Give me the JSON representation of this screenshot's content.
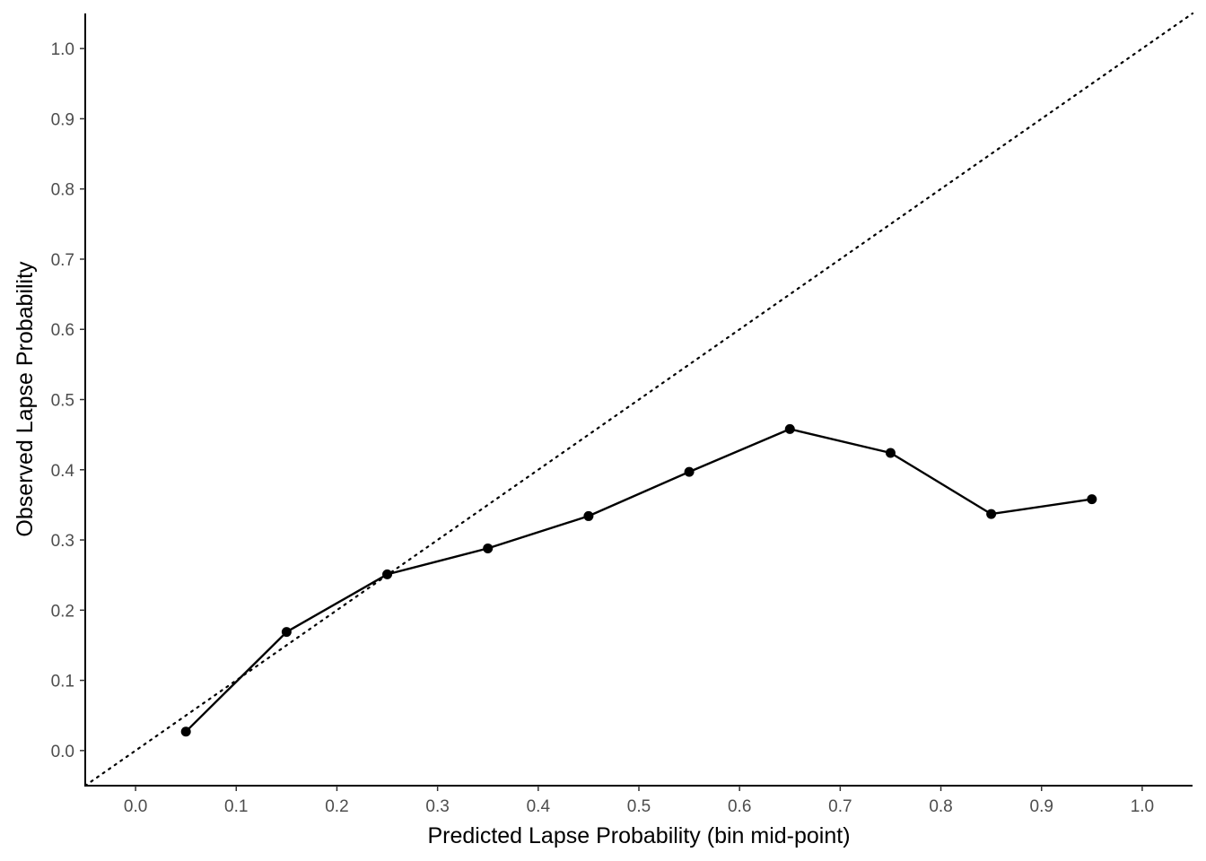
{
  "chart_data": {
    "type": "line",
    "title": "",
    "xlabel": "Predicted Lapse Probability (bin mid-point)",
    "ylabel": "Observed Lapse Probability",
    "xlim": [
      -0.05,
      1.05
    ],
    "ylim": [
      -0.05,
      1.05
    ],
    "x_ticks": [
      "0.0",
      "0.1",
      "0.2",
      "0.3",
      "0.4",
      "0.5",
      "0.6",
      "0.7",
      "0.8",
      "0.9",
      "1.0"
    ],
    "y_ticks": [
      "0.0",
      "0.1",
      "0.2",
      "0.3",
      "0.4",
      "0.5",
      "0.6",
      "0.7",
      "0.8",
      "0.9",
      "1.0"
    ],
    "grid": false,
    "legend": "none",
    "reference_line": {
      "style": "dotted",
      "slope": 1,
      "intercept": 0,
      "color": "#000000"
    },
    "series": [
      {
        "color": "#000000",
        "markers": true,
        "x": [
          0.05,
          0.15,
          0.25,
          0.35,
          0.45,
          0.55,
          0.65,
          0.75,
          0.85,
          0.95
        ],
        "y": [
          0.027,
          0.169,
          0.251,
          0.288,
          0.334,
          0.397,
          0.458,
          0.424,
          0.337,
          0.358
        ]
      }
    ]
  }
}
